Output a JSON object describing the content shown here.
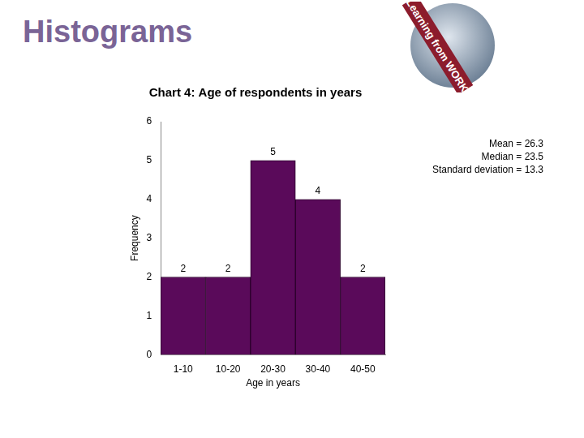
{
  "page_title": "Histograms",
  "logo_text": "Learning from WORK",
  "chart_data": {
    "type": "bar",
    "title": "Chart 4: Age of respondents in years",
    "x_label": "Age in years",
    "y_label": "Frequency",
    "categories": [
      "1-10",
      "10-20",
      "20-30",
      "30-40",
      "40-50"
    ],
    "values": [
      2,
      2,
      5,
      4,
      2
    ],
    "color": "#5a0a5a",
    "ylim": [
      0,
      6
    ],
    "yticks": [
      0,
      1,
      2,
      3,
      4,
      5,
      6
    ],
    "grid": false,
    "data_labels": true,
    "annotations": [
      "Mean = 26.3",
      "Median = 23.5",
      "Standard deviation = 13.3"
    ]
  }
}
